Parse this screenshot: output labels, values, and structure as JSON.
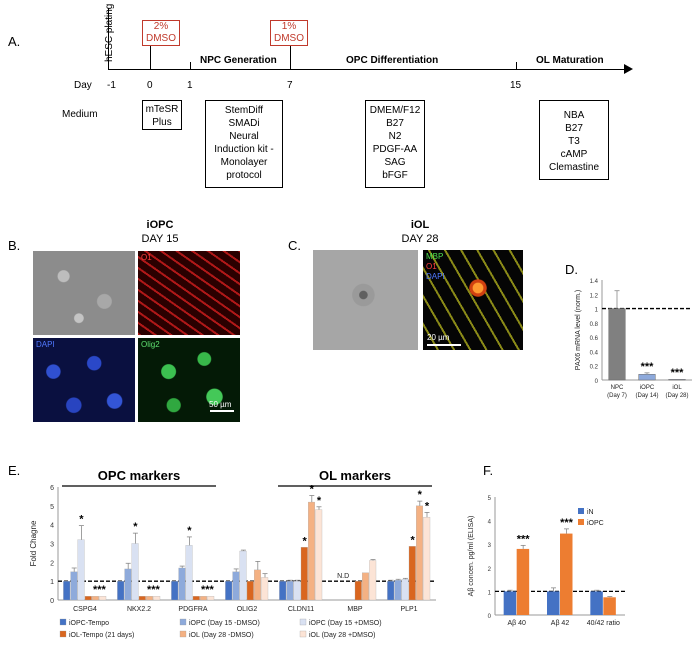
{
  "panel_letters": {
    "a": "A.",
    "b": "B.",
    "c": "C.",
    "d": "D.",
    "e": "E.",
    "f": "F."
  },
  "timeline": {
    "day_label": "Day",
    "medium_label": "Medium",
    "plating": "hESC plating",
    "dmso2": [
      "2%",
      "DMSO"
    ],
    "dmso1": [
      "1%",
      "DMSO"
    ],
    "ticks": [
      "-1",
      "0",
      "1",
      "7",
      "15"
    ],
    "stages": [
      "NPC Generation",
      "OPC Differentiation",
      "OL Maturation"
    ],
    "media": [
      [
        "mTeSR",
        "Plus"
      ],
      [
        "StemDiff",
        "SMADi",
        "Neural",
        "Induction kit -",
        "Monolayer",
        "protocol"
      ],
      [
        "DMEM/F12",
        "B27",
        "N2",
        "PDGF-AA",
        "SAG",
        "bFGF"
      ],
      [
        "NBA",
        "B27",
        "T3",
        "cAMP",
        "Clemastine"
      ]
    ]
  },
  "panel_b": {
    "title": "iOPC",
    "subtitle": "DAY 15",
    "labels": {
      "o1": "O1",
      "dapi": "DAPI",
      "olig2": "Olig2"
    },
    "scale": "50 µm"
  },
  "panel_c": {
    "title": "iOL",
    "subtitle": "DAY 28",
    "labels": {
      "mbp": "MBP",
      "o1": "O1",
      "dapi": "DAPI"
    },
    "scale": "20 µm"
  },
  "chart_data": [
    {
      "id": "D",
      "type": "bar",
      "ylabel": "PAX6 mRNA level (norm.)",
      "ylim": [
        0,
        1.4
      ],
      "yticks": [
        "0",
        "0.2",
        "0.4",
        "0.6",
        "0.8",
        "1",
        "1.2",
        "1.4"
      ],
      "categories": [
        [
          "NPC",
          "(Day 7)"
        ],
        [
          "iOPC",
          "(Day 14)"
        ],
        [
          "iOL",
          "(Day 28)"
        ]
      ],
      "values": [
        1.0,
        0.08,
        0.01
      ],
      "errors": [
        0.25,
        0.02,
        0.005
      ],
      "annotations": [
        "",
        "***",
        "***"
      ],
      "reference_line": 1,
      "colors": [
        "#808080",
        "#8da9db",
        "#c9d5ee"
      ]
    },
    {
      "id": "E",
      "type": "bar",
      "ylabel": "Fold Chagne",
      "ylim": [
        0,
        6
      ],
      "yticks": [
        "0",
        "1",
        "2",
        "3",
        "4",
        "5",
        "6"
      ],
      "reference_line": 1,
      "group_headers": [
        "OPC markers",
        "OL markers"
      ],
      "categories": [
        "CSPG4",
        "NKX2.2",
        "PDGFRA",
        "OLIG2",
        "CLDN11",
        "MBP",
        "PLP1"
      ],
      "na_label": "N.D",
      "series": [
        {
          "name": "iOPC-Tempo",
          "color": "#4472c4",
          "values": [
            1,
            1,
            1,
            1,
            1,
            null,
            1
          ],
          "errors": [
            0,
            0,
            0,
            0,
            0,
            0,
            0.05
          ]
        },
        {
          "name": "iOPC (Day 15 -DMSO)",
          "color": "#8eaadb",
          "values": [
            1.5,
            1.65,
            1.7,
            1.5,
            1.0,
            null,
            1.05
          ],
          "errors": [
            0.2,
            0.3,
            0.1,
            0.15,
            0.05,
            0,
            0.05
          ]
        },
        {
          "name": "iOPC (Day 15 +DMSO)",
          "color": "#d9e1f2",
          "values": [
            3.2,
            3.0,
            2.9,
            2.6,
            1.0,
            null,
            1.1
          ],
          "errors": [
            0.75,
            0.55,
            0.45,
            0.05,
            0.05,
            0,
            0.05
          ]
        },
        {
          "name": "iOL-Tempo (21 days)",
          "color": "#d9661f",
          "values": [
            0.2,
            0.2,
            0.2,
            1.0,
            2.8,
            1.0,
            2.85
          ]
        },
        {
          "name": "iOL (Day 28 -DMSO)",
          "color": "#f4b183",
          "values": [
            0.2,
            0.2,
            0.2,
            1.6,
            5.2,
            1.45,
            5.0
          ],
          "errors": [
            0,
            0,
            0,
            0.45,
            0.35,
            0,
            0.25
          ]
        },
        {
          "name": "iOL (Day 28 +DMSO)",
          "color": "#fce4d6",
          "values": [
            0.2,
            0.2,
            0.2,
            1.2,
            4.8,
            2.1,
            4.4
          ],
          "errors": [
            0,
            0,
            0,
            0.2,
            0.15,
            0.05,
            0.25
          ]
        }
      ],
      "annotations": [
        {
          "category": 0,
          "series": 2,
          "text": "*"
        },
        {
          "category": 0,
          "series": 4,
          "text": "***"
        },
        {
          "category": 1,
          "series": 2,
          "text": "*"
        },
        {
          "category": 1,
          "series": 4,
          "text": "***"
        },
        {
          "category": 2,
          "series": 2,
          "text": "*"
        },
        {
          "category": 2,
          "series": 4,
          "text": "***"
        },
        {
          "category": 4,
          "series": 3,
          "text": "*"
        },
        {
          "category": 4,
          "series": 4,
          "text": "*"
        },
        {
          "category": 4,
          "series": 5,
          "text": "*"
        },
        {
          "category": 6,
          "series": 3,
          "text": "*"
        },
        {
          "category": 6,
          "series": 4,
          "text": "*"
        },
        {
          "category": 6,
          "series": 5,
          "text": "*"
        }
      ]
    },
    {
      "id": "F",
      "type": "bar",
      "ylabel": "Aβ concen. pg/ml (ELISA)",
      "ylim": [
        0,
        5
      ],
      "yticks": [
        "0",
        "1",
        "2",
        "3",
        "4",
        "5"
      ],
      "reference_line": 1,
      "categories": [
        "Aβ 40",
        "Aβ 42",
        "40/42 ratio"
      ],
      "series": [
        {
          "name": "iN",
          "color": "#4472c4",
          "values": [
            1.0,
            1.0,
            1.0
          ],
          "errors": [
            0.05,
            0.15,
            0.05
          ]
        },
        {
          "name": "iOPC",
          "color": "#ed7d31",
          "values": [
            2.8,
            3.45,
            0.75
          ],
          "errors": [
            0.15,
            0.2,
            0.03
          ]
        }
      ],
      "annotations": [
        {
          "category": 0,
          "series": 1,
          "text": "***"
        },
        {
          "category": 1,
          "series": 1,
          "text": "***"
        }
      ]
    }
  ]
}
